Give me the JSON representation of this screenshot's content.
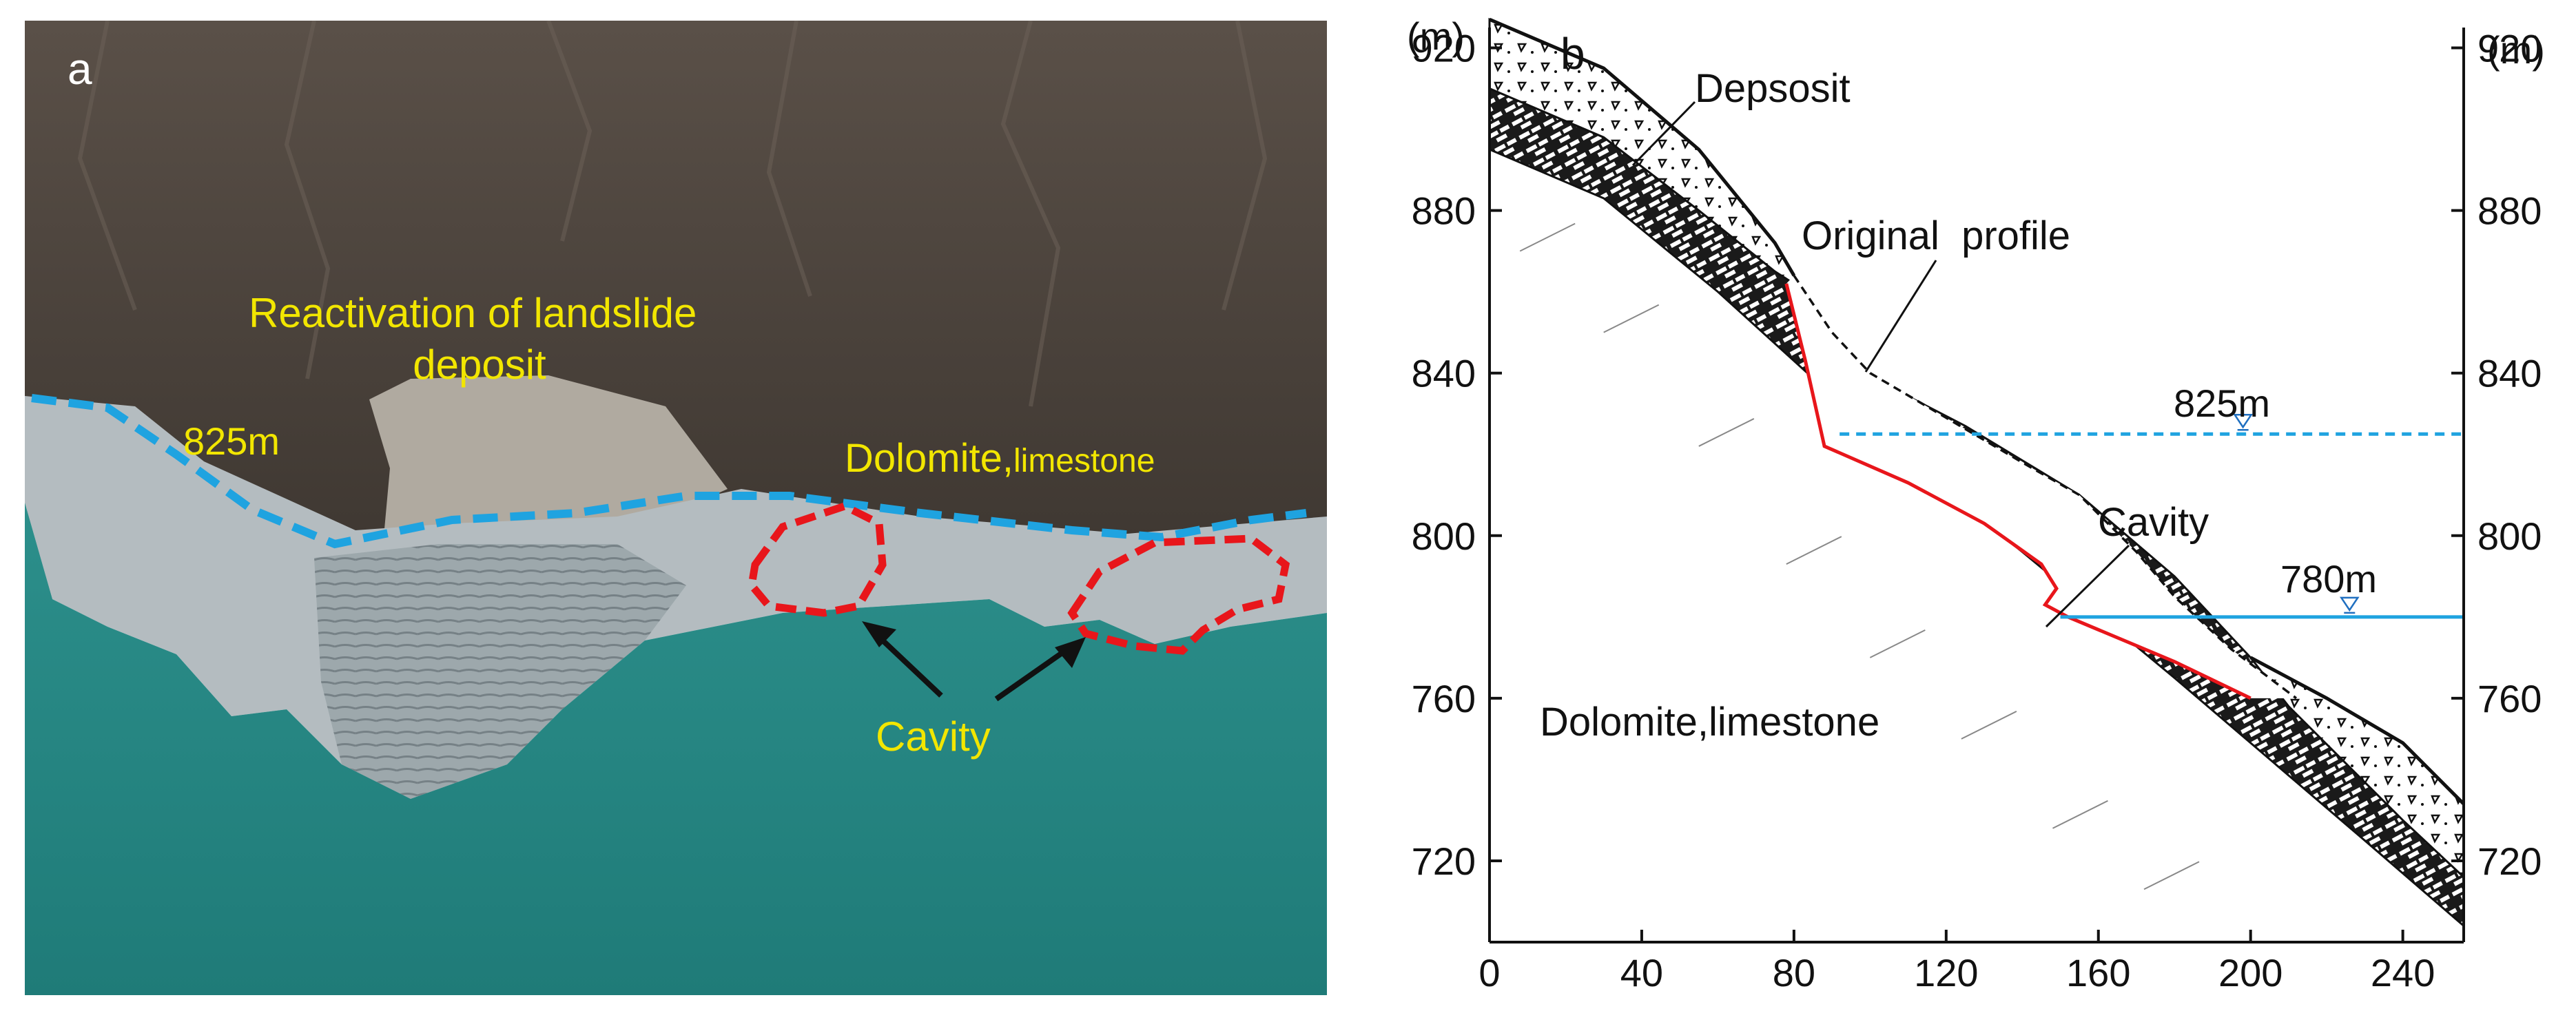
{
  "panel_a": {
    "label": "a",
    "annotations": {
      "reactivation_line1": "Reactivation of landslide",
      "reactivation_line2": "deposit",
      "level_825": "825m",
      "dolomite_main": "Dolomite,",
      "dolomite_small": "limestone",
      "cavity": "Cavity"
    },
    "colors": {
      "label_text": "#f2e600",
      "water_line": "#1fa3e0",
      "cavity_outline": "#e8161b",
      "water": "#2a8f8c",
      "slope": "#4a4038"
    }
  },
  "panel_b": {
    "label": "b",
    "unit_left": "(m)",
    "unit_right": "(m)",
    "y_ticks": [
      "920",
      "880",
      "840",
      "800",
      "760",
      "720"
    ],
    "x_ticks": [
      "0",
      "40",
      "80",
      "120",
      "160",
      "200",
      "240"
    ],
    "annotations": {
      "deposit": "Depsosit",
      "original_profile": "Original  profile",
      "level_825": "825m",
      "level_780": "780m",
      "cavity": "Cavity",
      "dolomite": "Dolomite,limestone"
    },
    "colors": {
      "failure_surface": "#e8161b",
      "water_825": "#1fa3e0",
      "water_780": "#1fa3e0"
    },
    "chart_data": {
      "type": "diagram",
      "x_range": [
        0,
        256
      ],
      "y_range": [
        700,
        925
      ],
      "water_levels": [
        825,
        780
      ],
      "ground_surface": [
        [
          0,
          927
        ],
        [
          30,
          915
        ],
        [
          55,
          895
        ],
        [
          75,
          872
        ],
        [
          80,
          864
        ],
        [
          94,
          842
        ],
        [
          125,
          827
        ],
        [
          155,
          810
        ],
        [
          180,
          790
        ],
        [
          200,
          770
        ],
        [
          220,
          760
        ],
        [
          240,
          749
        ],
        [
          256,
          734
        ]
      ],
      "bedrock_top": [
        [
          0,
          910
        ],
        [
          30,
          898
        ],
        [
          55,
          880
        ],
        [
          75,
          865
        ],
        [
          80,
          862
        ]
      ],
      "bedrock_bottom": [
        [
          0,
          895
        ],
        [
          30,
          883
        ],
        [
          60,
          860
        ],
        [
          100,
          826
        ],
        [
          140,
          796
        ],
        [
          180,
          765
        ],
        [
          230,
          725
        ],
        [
          256,
          704
        ]
      ],
      "failure_surface": [
        [
          78,
          862
        ],
        [
          83,
          843
        ],
        [
          88,
          822
        ],
        [
          110,
          813
        ],
        [
          130,
          803
        ],
        [
          145,
          793
        ],
        [
          149,
          787
        ],
        [
          146,
          783
        ],
        [
          152,
          780
        ],
        [
          180,
          769
        ],
        [
          200,
          760
        ]
      ],
      "original_profile": [
        [
          80,
          864
        ],
        [
          90,
          850
        ],
        [
          100,
          840
        ],
        [
          120,
          829
        ],
        [
          140,
          818
        ],
        [
          155,
          810
        ],
        [
          170,
          796
        ],
        [
          180,
          785
        ],
        [
          195,
          772
        ],
        [
          212,
          760
        ]
      ]
    }
  }
}
